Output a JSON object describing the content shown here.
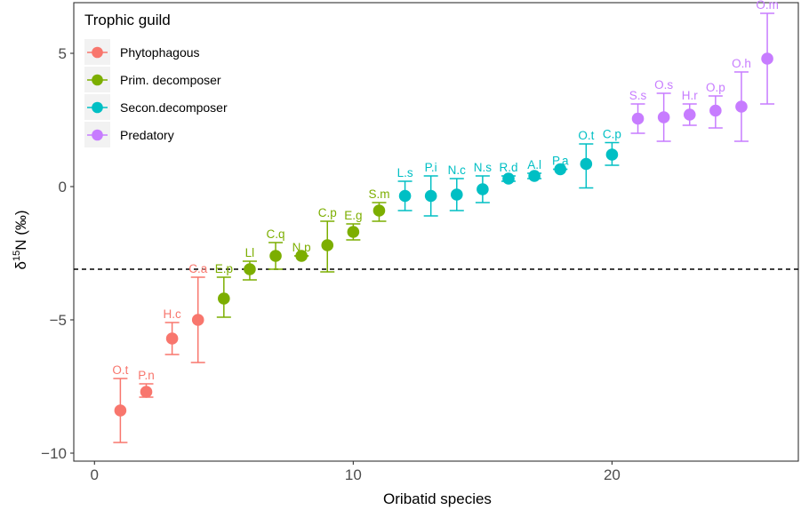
{
  "chart_data": {
    "type": "scatter",
    "xlabel": "Oribatid species",
    "ylabel_main": "δ",
    "ylabel_sup": "15",
    "ylabel_rest": "N (‰)",
    "xlim": [
      -0.8,
      27.2
    ],
    "ylim": [
      -10.3,
      6.9
    ],
    "xticks": [
      0,
      10,
      20
    ],
    "yticks": [
      -10,
      -5,
      0,
      5
    ],
    "ytick_labels": [
      "−10",
      "−5",
      "0",
      "5"
    ],
    "reference_line_y": -3.1,
    "grid": false,
    "legend": {
      "title": "Trophic guild",
      "position": "top-left"
    },
    "series": [
      {
        "name": "Phytophagous",
        "color": "#F8766D",
        "points": [
          {
            "x": 1,
            "y": -8.4,
            "lo": -9.6,
            "hi": -7.2,
            "label": "O.t"
          },
          {
            "x": 2,
            "y": -7.7,
            "lo": -7.9,
            "hi": -7.4,
            "label": "P.n"
          },
          {
            "x": 3,
            "y": -5.7,
            "lo": -6.3,
            "hi": -5.1,
            "label": "H.c"
          },
          {
            "x": 4,
            "y": -5.0,
            "lo": -6.6,
            "hi": -3.4,
            "label": "C.a"
          }
        ]
      },
      {
        "name": "Prim. decomposer",
        "color": "#7CAE00",
        "points": [
          {
            "x": 5,
            "y": -4.2,
            "lo": -4.9,
            "hi": -3.4,
            "label": "E.p"
          },
          {
            "x": 6,
            "y": -3.1,
            "lo": -3.5,
            "hi": -2.8,
            "label": "Ll"
          },
          {
            "x": 7,
            "y": -2.6,
            "lo": -3.1,
            "hi": -2.1,
            "label": "C.q"
          },
          {
            "x": 8,
            "y": -2.6,
            "lo": -2.6,
            "hi": -2.6,
            "label": "N.p"
          },
          {
            "x": 9,
            "y": -2.2,
            "lo": -3.2,
            "hi": -1.3,
            "label": "C.p"
          },
          {
            "x": 10,
            "y": -1.7,
            "lo": -2.0,
            "hi": -1.4,
            "label": "E.g"
          },
          {
            "x": 11,
            "y": -0.9,
            "lo": -1.3,
            "hi": -0.6,
            "label": "S.m"
          }
        ]
      },
      {
        "name": "Secon.decomposer",
        "color": "#00BFC4",
        "points": [
          {
            "x": 12,
            "y": -0.35,
            "lo": -0.9,
            "hi": 0.2,
            "label": "L.s"
          },
          {
            "x": 13,
            "y": -0.35,
            "lo": -1.1,
            "hi": 0.4,
            "label": "P.i"
          },
          {
            "x": 14,
            "y": -0.3,
            "lo": -0.9,
            "hi": 0.3,
            "label": "N.c"
          },
          {
            "x": 15,
            "y": -0.1,
            "lo": -0.6,
            "hi": 0.4,
            "label": "N.s"
          },
          {
            "x": 16,
            "y": 0.3,
            "lo": 0.2,
            "hi": 0.4,
            "label": "R.d"
          },
          {
            "x": 17,
            "y": 0.4,
            "lo": 0.3,
            "hi": 0.5,
            "label": "A.l"
          },
          {
            "x": 18,
            "y": 0.65,
            "lo": 0.65,
            "hi": 0.65,
            "label": "P.a"
          },
          {
            "x": 19,
            "y": 0.85,
            "lo": -0.05,
            "hi": 1.6,
            "label": "O.t"
          },
          {
            "x": 20,
            "y": 1.2,
            "lo": 0.8,
            "hi": 1.65,
            "label": "C.p"
          }
        ]
      },
      {
        "name": "Predatory",
        "color": "#C77CFF",
        "points": [
          {
            "x": 21,
            "y": 2.55,
            "lo": 2.0,
            "hi": 3.1,
            "label": "S.s"
          },
          {
            "x": 22,
            "y": 2.6,
            "lo": 1.7,
            "hi": 3.5,
            "label": "O.s"
          },
          {
            "x": 23,
            "y": 2.7,
            "lo": 2.3,
            "hi": 3.1,
            "label": "H.r"
          },
          {
            "x": 24,
            "y": 2.85,
            "lo": 2.2,
            "hi": 3.4,
            "label": "O.p"
          },
          {
            "x": 25,
            "y": 3.0,
            "lo": 1.7,
            "hi": 4.3,
            "label": "O.h"
          },
          {
            "x": 26,
            "y": 4.8,
            "lo": 3.1,
            "hi": 6.5,
            "label": "O.m"
          }
        ]
      }
    ]
  }
}
